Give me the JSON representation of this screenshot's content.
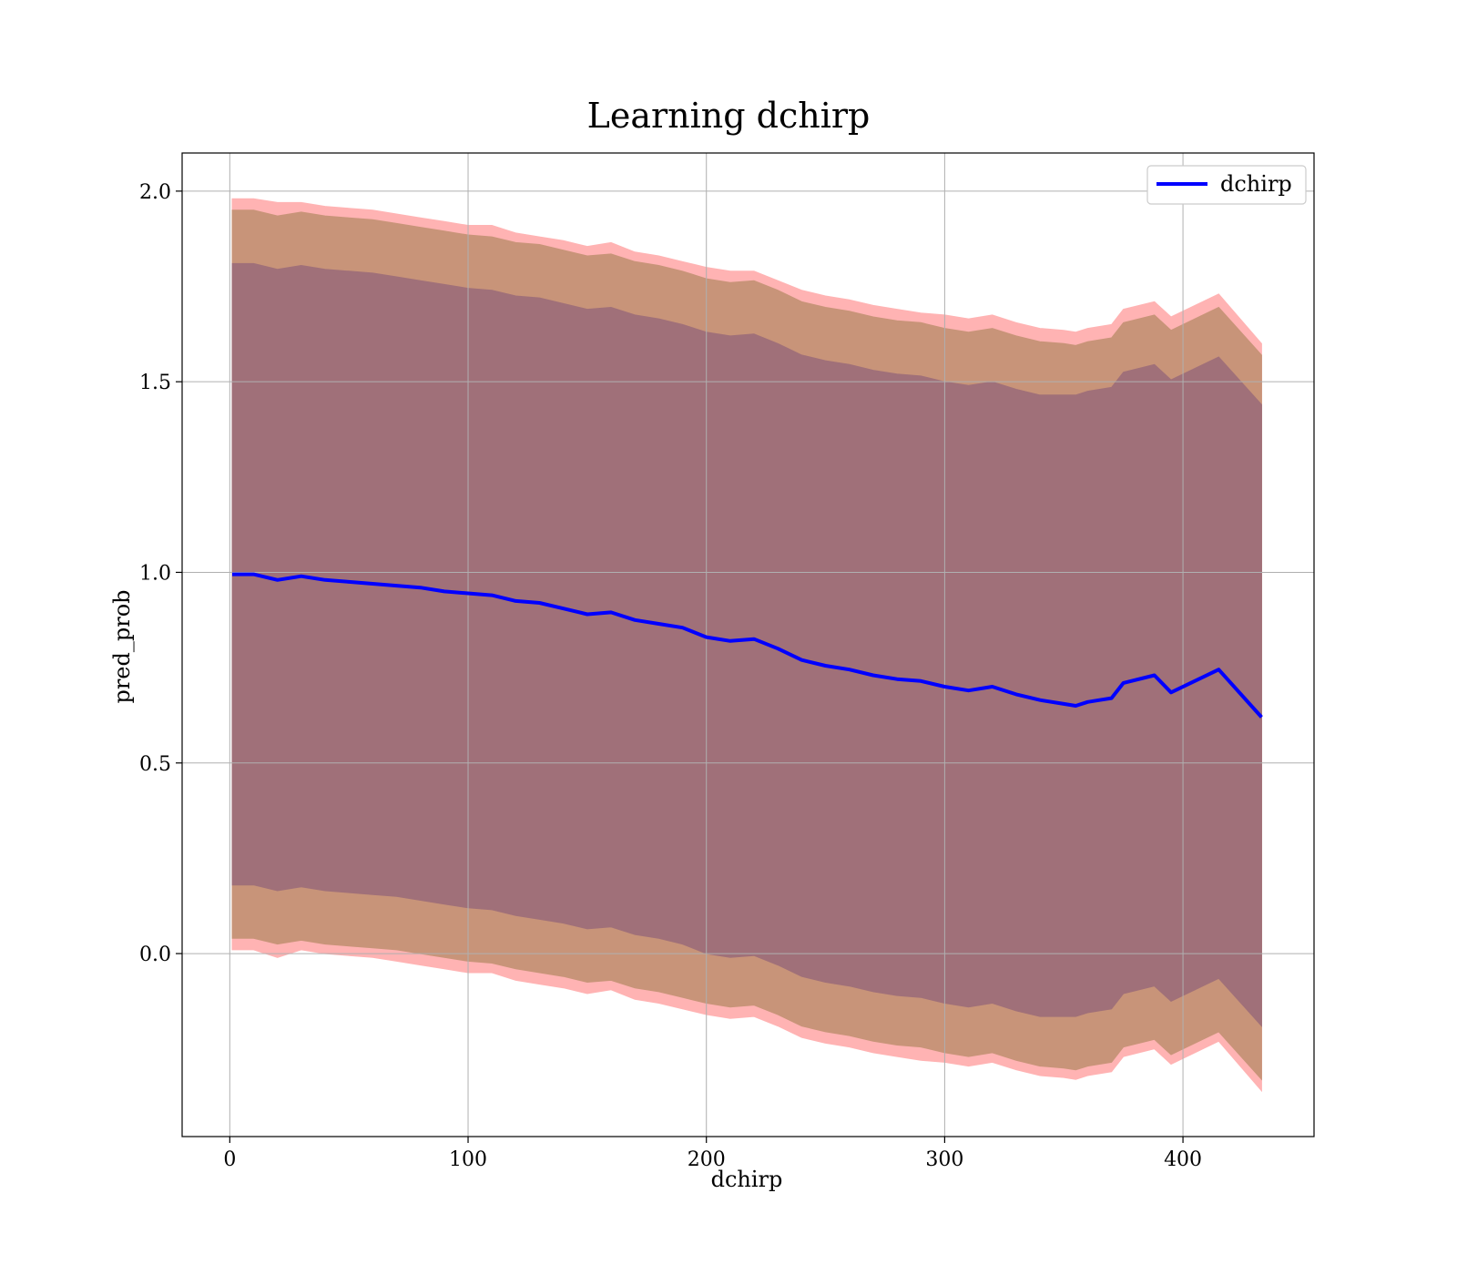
{
  "chart_data": {
    "type": "line",
    "title": "Learning dchirp",
    "xlabel": "dchirp",
    "ylabel": "pred_prob",
    "xlim": [
      -20,
      455
    ],
    "ylim": [
      -0.48,
      2.1
    ],
    "xticks": [
      0,
      100,
      200,
      300,
      400
    ],
    "yticks": [
      0.0,
      0.5,
      1.0,
      1.5,
      2.0
    ],
    "xtick_labels": [
      "0",
      "100",
      "200",
      "300",
      "400"
    ],
    "ytick_labels": [
      "0.0",
      "0.5",
      "1.0",
      "1.5",
      "2.0"
    ],
    "grid": true,
    "legend": {
      "position": "top-right",
      "entries": [
        "dchirp"
      ]
    },
    "colors": {
      "line": "#0000ff",
      "outer_band": "#ffb3b3",
      "middle_band": "#c89479",
      "inner_band": "#a07079"
    },
    "series": [
      {
        "name": "dchirp",
        "x": [
          1,
          10,
          20,
          30,
          40,
          50,
          60,
          70,
          80,
          90,
          100,
          110,
          120,
          130,
          140,
          150,
          160,
          170,
          180,
          190,
          200,
          210,
          220,
          230,
          240,
          250,
          260,
          270,
          280,
          290,
          300,
          310,
          320,
          330,
          340,
          350,
          355,
          360,
          365,
          370,
          375,
          388,
          395,
          415,
          433
        ],
        "y": [
          0.995,
          0.995,
          0.98,
          0.99,
          0.98,
          0.975,
          0.97,
          0.965,
          0.96,
          0.95,
          0.945,
          0.94,
          0.925,
          0.92,
          0.905,
          0.89,
          0.895,
          0.875,
          0.865,
          0.855,
          0.83,
          0.82,
          0.825,
          0.8,
          0.77,
          0.755,
          0.745,
          0.73,
          0.72,
          0.715,
          0.7,
          0.69,
          0.7,
          0.68,
          0.665,
          0.655,
          0.65,
          0.66,
          0.665,
          0.67,
          0.71,
          0.73,
          0.685,
          0.745,
          0.62
        ]
      }
    ],
    "bands": [
      {
        "label": "outer",
        "upper": [
          1.98,
          1.98,
          1.97,
          1.97,
          1.96,
          1.955,
          1.95,
          1.94,
          1.93,
          1.92,
          1.91,
          1.91,
          1.89,
          1.88,
          1.87,
          1.855,
          1.865,
          1.84,
          1.83,
          1.815,
          1.8,
          1.79,
          1.79,
          1.765,
          1.74,
          1.725,
          1.715,
          1.7,
          1.69,
          1.68,
          1.675,
          1.665,
          1.675,
          1.655,
          1.64,
          1.635,
          1.63,
          1.64,
          1.645,
          1.65,
          1.69,
          1.71,
          1.67,
          1.73,
          1.6
        ],
        "lower": [
          0.01,
          0.01,
          -0.01,
          0.01,
          0.0,
          -0.005,
          -0.01,
          -0.02,
          -0.03,
          -0.04,
          -0.05,
          -0.05,
          -0.07,
          -0.08,
          -0.09,
          -0.105,
          -0.095,
          -0.12,
          -0.13,
          -0.145,
          -0.16,
          -0.17,
          -0.165,
          -0.19,
          -0.22,
          -0.235,
          -0.245,
          -0.26,
          -0.27,
          -0.28,
          -0.285,
          -0.295,
          -0.285,
          -0.305,
          -0.32,
          -0.325,
          -0.33,
          -0.32,
          -0.315,
          -0.31,
          -0.27,
          -0.25,
          -0.29,
          -0.23,
          -0.36
        ]
      },
      {
        "label": "middle",
        "upper": [
          1.95,
          1.95,
          1.935,
          1.945,
          1.935,
          1.93,
          1.925,
          1.915,
          1.905,
          1.895,
          1.885,
          1.88,
          1.865,
          1.86,
          1.845,
          1.83,
          1.835,
          1.815,
          1.805,
          1.79,
          1.77,
          1.76,
          1.765,
          1.74,
          1.71,
          1.695,
          1.685,
          1.67,
          1.66,
          1.655,
          1.64,
          1.63,
          1.64,
          1.62,
          1.605,
          1.6,
          1.595,
          1.605,
          1.61,
          1.615,
          1.655,
          1.675,
          1.635,
          1.695,
          1.57
        ],
        "lower": [
          0.04,
          0.04,
          0.025,
          0.035,
          0.025,
          0.02,
          0.015,
          0.01,
          0.0,
          -0.01,
          -0.02,
          -0.025,
          -0.04,
          -0.05,
          -0.06,
          -0.075,
          -0.07,
          -0.09,
          -0.1,
          -0.115,
          -0.13,
          -0.14,
          -0.135,
          -0.16,
          -0.19,
          -0.205,
          -0.215,
          -0.23,
          -0.24,
          -0.245,
          -0.26,
          -0.27,
          -0.26,
          -0.28,
          -0.295,
          -0.3,
          -0.305,
          -0.295,
          -0.29,
          -0.285,
          -0.245,
          -0.225,
          -0.265,
          -0.205,
          -0.33
        ]
      },
      {
        "label": "inner",
        "upper": [
          1.81,
          1.81,
          1.795,
          1.805,
          1.795,
          1.79,
          1.785,
          1.775,
          1.765,
          1.755,
          1.745,
          1.74,
          1.725,
          1.72,
          1.705,
          1.69,
          1.695,
          1.675,
          1.665,
          1.65,
          1.63,
          1.62,
          1.625,
          1.6,
          1.57,
          1.555,
          1.545,
          1.53,
          1.52,
          1.515,
          1.5,
          1.49,
          1.5,
          1.48,
          1.465,
          1.465,
          1.465,
          1.475,
          1.48,
          1.485,
          1.525,
          1.545,
          1.505,
          1.565,
          1.44
        ],
        "lower": [
          0.18,
          0.18,
          0.165,
          0.175,
          0.165,
          0.16,
          0.155,
          0.15,
          0.14,
          0.13,
          0.12,
          0.115,
          0.1,
          0.09,
          0.08,
          0.065,
          0.07,
          0.05,
          0.04,
          0.025,
          0.0,
          -0.01,
          -0.005,
          -0.03,
          -0.06,
          -0.075,
          -0.085,
          -0.1,
          -0.11,
          -0.115,
          -0.13,
          -0.14,
          -0.13,
          -0.15,
          -0.165,
          -0.165,
          -0.165,
          -0.155,
          -0.15,
          -0.145,
          -0.105,
          -0.085,
          -0.125,
          -0.065,
          -0.19
        ]
      }
    ]
  }
}
